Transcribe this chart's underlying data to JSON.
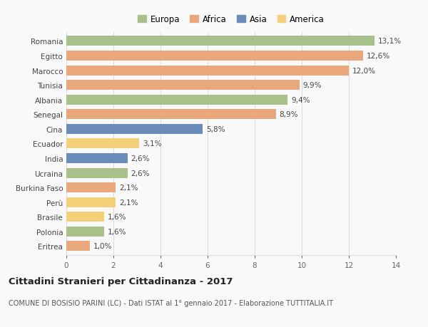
{
  "categories": [
    "Romania",
    "Egitto",
    "Marocco",
    "Tunisia",
    "Albania",
    "Senegal",
    "Cina",
    "Ecuador",
    "India",
    "Ucraina",
    "Burkina Faso",
    "Perù",
    "Brasile",
    "Polonia",
    "Eritrea"
  ],
  "values": [
    13.1,
    12.6,
    12.0,
    9.9,
    9.4,
    8.9,
    5.8,
    3.1,
    2.6,
    2.6,
    2.1,
    2.1,
    1.6,
    1.6,
    1.0
  ],
  "continents": [
    "Europa",
    "Africa",
    "Africa",
    "Africa",
    "Europa",
    "Africa",
    "Asia",
    "America",
    "Asia",
    "Europa",
    "Africa",
    "America",
    "America",
    "Europa",
    "Africa"
  ],
  "colors": {
    "Europa": "#a8c08a",
    "Africa": "#e8a87c",
    "Asia": "#6b8cba",
    "America": "#f5d07a"
  },
  "legend_order": [
    "Europa",
    "Africa",
    "Asia",
    "America"
  ],
  "title_bold": "Cittadini Stranieri per Cittadinanza - 2017",
  "subtitle": "COMUNE DI BOSISIO PARINI (LC) - Dati ISTAT al 1° gennaio 2017 - Elaborazione TUTTITALIA.IT",
  "xlim": [
    0,
    14
  ],
  "xticks": [
    0,
    2,
    4,
    6,
    8,
    10,
    12,
    14
  ],
  "background_color": "#f9f9f9",
  "grid_color": "#dddddd",
  "bar_height": 0.68,
  "label_fontsize": 7.5,
  "tick_fontsize": 7.5,
  "title_fontsize": 9.5,
  "subtitle_fontsize": 7.0,
  "legend_fontsize": 8.5
}
